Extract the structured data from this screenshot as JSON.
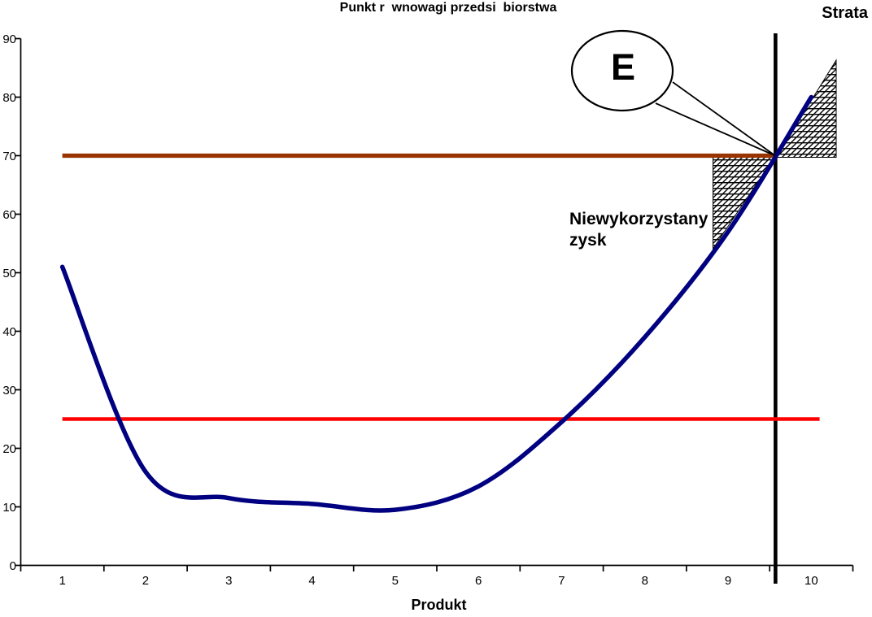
{
  "title": "Punkt r  wnowagi przedsi  biorstwa",
  "labels": {
    "strata": "Strata",
    "unused_line1": "Niewykorzystany",
    "unused_line2": "zysk",
    "callout_e": "E",
    "x_axis": "Produkt"
  },
  "colors": {
    "curve": "#000080",
    "price_line": "#ff0000",
    "revenue_line": "#993300",
    "axis": "#000000",
    "background": "#ffffff"
  },
  "chart_data": {
    "type": "line",
    "title": "Punkt r  wnowagi przedsi  biorstwa",
    "xlabel": "Produkt",
    "ylabel": "",
    "ylim": [
      0,
      90
    ],
    "grid": "off",
    "legend": "none",
    "categories": [
      1,
      2,
      3,
      4,
      5,
      6,
      7,
      8,
      9,
      10
    ],
    "series": [
      {
        "name": "krzywa kosztu (niebieska)",
        "color": "#000080",
        "values": [
          51,
          16,
          11.5,
          10.5,
          9.5,
          13.5,
          24.5,
          39,
          57,
          80
        ]
      }
    ],
    "h_lines": [
      {
        "name": "linia czerwona",
        "value": 25,
        "color": "#ff0000",
        "from_cat": 1.0,
        "to_cat": 10.1
      },
      {
        "name": "linia brazowa",
        "value": 70,
        "color": "#993300",
        "from_cat": 1.0,
        "to_cat": 9.56
      }
    ],
    "v_line": {
      "name": "linia pionowa",
      "cat": 9.57,
      "color": "#000000"
    },
    "y_ticks": [
      "90",
      "80",
      "70",
      "60",
      "50",
      "40",
      "30",
      "20",
      "10",
      "0"
    ],
    "x_ticks": [
      "1",
      "2",
      "3",
      "4",
      "5",
      "6",
      "7",
      "8",
      "9",
      "10"
    ],
    "annotations": {
      "callout": "E",
      "loss_region": "Strata",
      "unused_profit_region": "Niewykorzystany zysk"
    }
  }
}
